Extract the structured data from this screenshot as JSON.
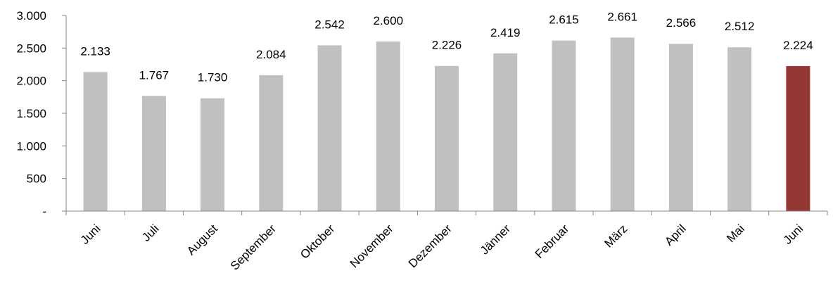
{
  "chart_data": {
    "type": "bar",
    "categories": [
      "Juni",
      "Juli",
      "August",
      "September",
      "Oktober",
      "November",
      "Dezember",
      "Jänner",
      "Februar",
      "März",
      "April",
      "Mai",
      "Juni"
    ],
    "values": [
      2133,
      1767,
      1730,
      2084,
      2542,
      2600,
      2226,
      2419,
      2615,
      2661,
      2566,
      2512,
      2224
    ],
    "data_labels": [
      "2.133",
      "1.767",
      "1.730",
      "2.084",
      "2.542",
      "2.600",
      "2.226",
      "2.419",
      "2.615",
      "2.661",
      "2.566",
      "2.512",
      "2.224"
    ],
    "y_ticks": [
      0,
      500,
      1000,
      1500,
      2000,
      2500,
      3000
    ],
    "y_tick_labels": [
      "-",
      "500",
      "1.000",
      "1.500",
      "2.000",
      "2.500",
      "3.000"
    ],
    "ylim": [
      0,
      3000
    ],
    "grid": false,
    "legend": "none",
    "title": "",
    "xlabel": "",
    "ylabel": "",
    "colors": {
      "bar": "#c0c0c0",
      "highlight": "#953735",
      "axis": "#868686"
    },
    "highlight_index": 12
  }
}
